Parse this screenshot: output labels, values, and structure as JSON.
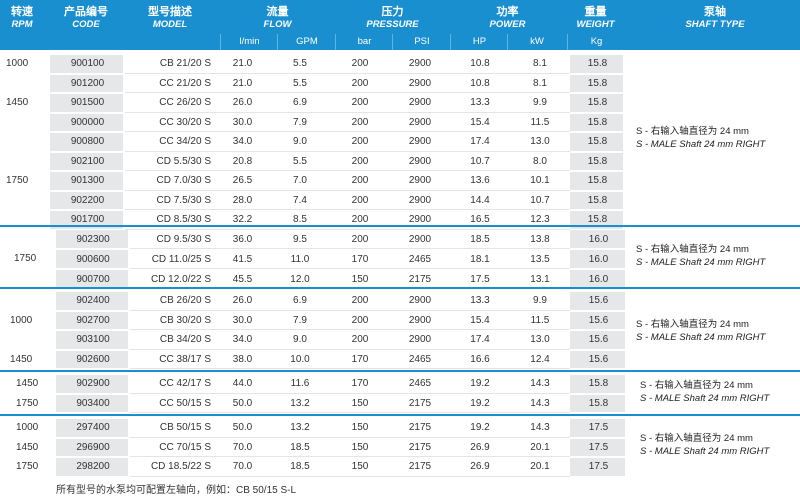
{
  "header": {
    "rpm": {
      "zh": "转速",
      "en": "RPM"
    },
    "code": {
      "zh": "产品编号",
      "en": "CODE"
    },
    "model": {
      "zh": "型号描述",
      "en": "MODEL"
    },
    "flow": {
      "zh": "流量",
      "en": "FLOW",
      "u1": "l/min",
      "u2": "GPM"
    },
    "pressure": {
      "zh": "压力",
      "en": "PRESSURE",
      "u1": "bar",
      "u2": "PSI"
    },
    "power": {
      "zh": "功率",
      "en": "POWER",
      "u1": "HP",
      "u2": "kW"
    },
    "weight": {
      "zh": "重量",
      "en": "WEIGHT",
      "u1": "Kg"
    },
    "shaft": {
      "zh": "泵轴",
      "en": "SHAFT TYPE"
    }
  },
  "shaft_text": {
    "zh": "S - 右输入轴直径为 24 mm",
    "en": "S - MALE Shaft 24 mm RIGHT"
  },
  "blocks": [
    {
      "rpm_labels": [
        {
          "text": "1000",
          "row": 0
        },
        {
          "text": "1450",
          "row": 2
        },
        {
          "text": "1750",
          "row": 6
        }
      ],
      "rows": [
        [
          "900100",
          "CB 21/20 S",
          "21.0",
          "5.5",
          "200",
          "2900",
          "10.8",
          "8.1",
          "15.8"
        ],
        [
          "901200",
          "CC 21/20 S",
          "21.0",
          "5.5",
          "200",
          "2900",
          "10.8",
          "8.1",
          "15.8"
        ],
        [
          "901500",
          "CC 26/20 S",
          "26.0",
          "6.9",
          "200",
          "2900",
          "13.3",
          "9.9",
          "15.8"
        ],
        [
          "900000",
          "CC 30/20 S",
          "30.0",
          "7.9",
          "200",
          "2900",
          "15.4",
          "11.5",
          "15.8"
        ],
        [
          "900800",
          "CC 34/20 S",
          "34.0",
          "9.0",
          "200",
          "2900",
          "17.4",
          "13.0",
          "15.8"
        ],
        [
          "902100",
          "CD 5.5/30 S",
          "20.8",
          "5.5",
          "200",
          "2900",
          "10.7",
          "8.0",
          "15.8"
        ],
        [
          "901300",
          "CD 7.0/30 S",
          "26.5",
          "7.0",
          "200",
          "2900",
          "13.6",
          "10.1",
          "15.8"
        ],
        [
          "902200",
          "CD 7.5/30 S",
          "28.0",
          "7.4",
          "200",
          "2900",
          "14.4",
          "10.7",
          "15.8"
        ],
        [
          "901700",
          "CD 8.5/30 S",
          "32.2",
          "8.5",
          "200",
          "2900",
          "16.5",
          "12.3",
          "15.8"
        ]
      ]
    },
    {
      "rpm_labels": [
        {
          "text": "1750",
          "row": 1
        }
      ],
      "rows": [
        [
          "902300",
          "CD 9.5/30 S",
          "36.0",
          "9.5",
          "200",
          "2900",
          "18.5",
          "13.8",
          "16.0"
        ],
        [
          "900600",
          "CD 11.0/25 S",
          "41.5",
          "11.0",
          "170",
          "2465",
          "18.1",
          "13.5",
          "16.0"
        ],
        [
          "900700",
          "CD 12.0/22 S",
          "45.5",
          "12.0",
          "150",
          "2175",
          "17.5",
          "13.1",
          "16.0"
        ]
      ]
    },
    {
      "rpm_labels": [
        {
          "text": "1000",
          "row": 1
        },
        {
          "text": "1450",
          "row": 3
        }
      ],
      "rows": [
        [
          "902400",
          "CB 26/20 S",
          "26.0",
          "6.9",
          "200",
          "2900",
          "13.3",
          "9.9",
          "15.6"
        ],
        [
          "902700",
          "CB 30/20 S",
          "30.0",
          "7.9",
          "200",
          "2900",
          "15.4",
          "11.5",
          "15.6"
        ],
        [
          "903100",
          "CB 34/20 S",
          "34.0",
          "9.0",
          "200",
          "2900",
          "17.4",
          "13.0",
          "15.6"
        ],
        [
          "902600",
          "CC 38/17 S",
          "38.0",
          "10.0",
          "170",
          "2465",
          "16.6",
          "12.4",
          "15.6"
        ]
      ]
    },
    {
      "rpm_labels": [
        {
          "text": "1450",
          "row": 0
        },
        {
          "text": "1750",
          "row": 1
        }
      ],
      "rows": [
        [
          "902900",
          "CC 42/17 S",
          "44.0",
          "11.6",
          "170",
          "2465",
          "19.2",
          "14.3",
          "15.8"
        ],
        [
          "903400",
          "CC 50/15 S",
          "50.0",
          "13.2",
          "150",
          "2175",
          "19.2",
          "14.3",
          "15.8"
        ]
      ]
    },
    {
      "rpm_labels": [
        {
          "text": "1000",
          "row": 0
        },
        {
          "text": "1450",
          "row": 1
        },
        {
          "text": "1750",
          "row": 2
        }
      ],
      "rows": [
        [
          "297400",
          "CB 50/15 S",
          "50.0",
          "13.2",
          "150",
          "2175",
          "19.2",
          "14.3",
          "17.5"
        ],
        [
          "296900",
          "CC 70/15 S",
          "70.0",
          "18.5",
          "150",
          "2175",
          "26.9",
          "20.1",
          "17.5"
        ],
        [
          "298200",
          "CD 18.5/22 S",
          "70.0",
          "18.5",
          "150",
          "2175",
          "26.9",
          "20.1",
          "17.5"
        ]
      ]
    }
  ],
  "footnote": "所有型号的水泵均可配置左轴向，例如：CB 50/15 S-L",
  "colors": {
    "header_bg": "#1a8fd0",
    "stripe": "#e6e7e8",
    "accent_line": "#1a8fd0",
    "gray_col": "#d9dadb"
  }
}
